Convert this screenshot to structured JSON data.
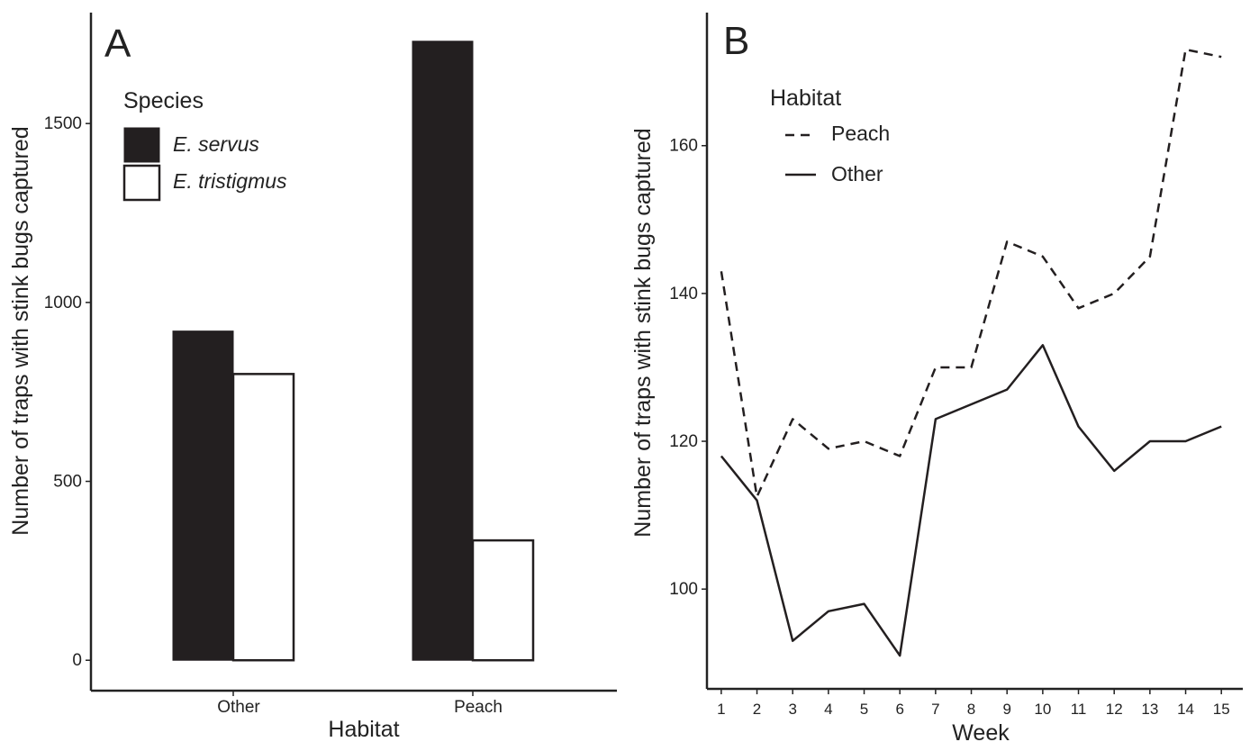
{
  "chart_data": [
    {
      "type": "bar",
      "panel_label": "A",
      "xlabel": "Habitat",
      "ylabel": "Number of traps with stink bugs captured",
      "categories": [
        "Other",
        "Peach"
      ],
      "ylim": [
        -85,
        1810
      ],
      "yticks": [
        0,
        500,
        1000,
        1500
      ],
      "legend": {
        "title": "Species",
        "position": "top-left"
      },
      "series": [
        {
          "name": "E. servus",
          "values": [
            920,
            1730
          ],
          "color": "#231f20",
          "fill": "solid"
        },
        {
          "name": "E. tristigmus",
          "values": [
            800,
            335
          ],
          "color": "#ffffff",
          "fill": "outline"
        }
      ],
      "grid": false
    },
    {
      "type": "line",
      "panel_label": "B",
      "xlabel": "Week",
      "ylabel": "Number of traps with stink bugs captured",
      "x": [
        1,
        2,
        3,
        4,
        5,
        6,
        7,
        8,
        9,
        10,
        11,
        12,
        13,
        14,
        15
      ],
      "xlim": [
        0.6,
        15.6
      ],
      "ylim": [
        86.5,
        178
      ],
      "yticks": [
        100,
        120,
        140,
        160
      ],
      "legend": {
        "title": "Habitat",
        "position": "top-left"
      },
      "series": [
        {
          "name": "Peach",
          "style": "dashed",
          "values": [
            143,
            112.5,
            123,
            119,
            120,
            118,
            130,
            130,
            147,
            145,
            138,
            140,
            145,
            173,
            172
          ]
        },
        {
          "name": "Other",
          "style": "solid",
          "values": [
            118,
            112,
            93,
            97,
            98,
            91,
            123,
            125,
            127,
            133,
            122,
            116,
            120,
            120,
            122
          ]
        }
      ],
      "grid": false
    }
  ]
}
